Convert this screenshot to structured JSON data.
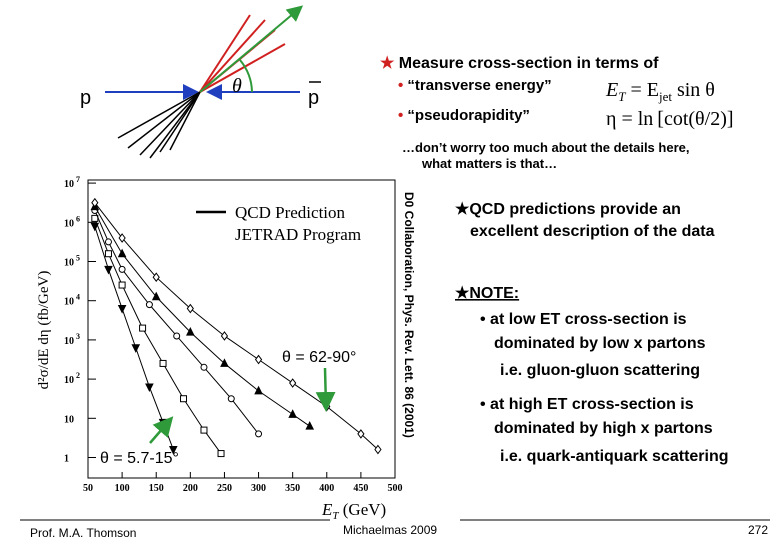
{
  "diagram": {
    "particle_left": "p",
    "angle": "θ",
    "particle_right": "p"
  },
  "intro": {
    "title": "Measure cross-section in terms of",
    "items": [
      "“transverse energy”",
      "“pseudorapidity”"
    ],
    "formula_et": {
      "lhs": "E",
      "lhs_sub": "T",
      "eq": " = E",
      "rhs_sub": "jet",
      "tail": " sin θ"
    },
    "formula_eta": {
      "lhs": "η = ln",
      "tail": "[cot(θ/2)]"
    }
  },
  "note": [
    "…don’t worry too much about the details here,",
    "what matters is that…"
  ],
  "chart_data": {
    "type": "scatter",
    "log_y": true,
    "xlabel": {
      "main": "E",
      "sub": "T",
      "unit": " (GeV)"
    },
    "ylabel": "d²σ/dE dη  (fb/GeV)",
    "legend": [
      "QCD Prediction",
      "JETRAD Program"
    ],
    "annotations": [
      "θ = 62-90°",
      "θ = 5.7-15°"
    ],
    "credit": "D0 Collaboration, Phys. Rev. Lett. 86 (2001)",
    "xlim": [
      50,
      500
    ],
    "xticks": [
      50,
      100,
      150,
      200,
      250,
      300,
      350,
      400,
      450,
      500
    ],
    "ylim": [
      0.3,
      12000000
    ],
    "yticks": [
      {
        "value": 1,
        "label": "1"
      },
      {
        "value": 10,
        "label": "10"
      },
      {
        "value": 100,
        "label": "10^2"
      },
      {
        "value": 1000,
        "label": "10^3"
      },
      {
        "value": 10000,
        "label": "10^4"
      },
      {
        "value": 100000,
        "label": "10^5"
      },
      {
        "value": 1000000,
        "label": "10^6"
      },
      {
        "value": 10000000,
        "label": "10^7"
      }
    ],
    "series": [
      {
        "marker": "triangle-down",
        "color": "#000000",
        "x": [
          60,
          80,
          100,
          120,
          140,
          160,
          175
        ],
        "values": [
          794000,
          63100,
          6310,
          631,
          63.1,
          7.9,
          1.6
        ]
      },
      {
        "marker": "square",
        "color": "#000000",
        "x": [
          60,
          80,
          100,
          130,
          160,
          190,
          220,
          245
        ],
        "values": [
          1260000,
          158000,
          25100,
          2000,
          251,
          31.6,
          5.0,
          1.26
        ]
      },
      {
        "marker": "circle",
        "color": "#000000",
        "x": [
          60,
          80,
          100,
          140,
          180,
          220,
          260,
          300
        ],
        "values": [
          2000000,
          316000,
          63100,
          7940,
          1260,
          200,
          31.6,
          4.0
        ]
      },
      {
        "marker": "triangle-up",
        "color": "#000000",
        "x": [
          60,
          100,
          150,
          200,
          250,
          300,
          350,
          375
        ],
        "values": [
          2510000,
          158000,
          12600,
          1580,
          251,
          50,
          12.6,
          6.3
        ]
      },
      {
        "marker": "diamond",
        "color": "#000000",
        "x": [
          60,
          100,
          150,
          200,
          250,
          300,
          350,
          400,
          450,
          475
        ],
        "values": [
          3160000,
          398000,
          39800,
          6310,
          1260,
          316,
          79.4,
          20,
          4.0,
          1.6
        ]
      }
    ]
  },
  "findings": {
    "point1": [
      "★QCD predictions provide an",
      "excellent description of the data"
    ],
    "point2": "★NOTE:",
    "low": [
      "• at low ET  cross-section is",
      "dominated by low x partons",
      "i.e. gluon-gluon scattering"
    ],
    "high": [
      "• at high ET  cross-section is",
      "dominated by high x partons",
      "i.e. quark-antiquark scattering"
    ]
  },
  "footer": {
    "author": "Prof. M.A. Thomson",
    "term": "Michaelmas 2009",
    "page": "272"
  }
}
